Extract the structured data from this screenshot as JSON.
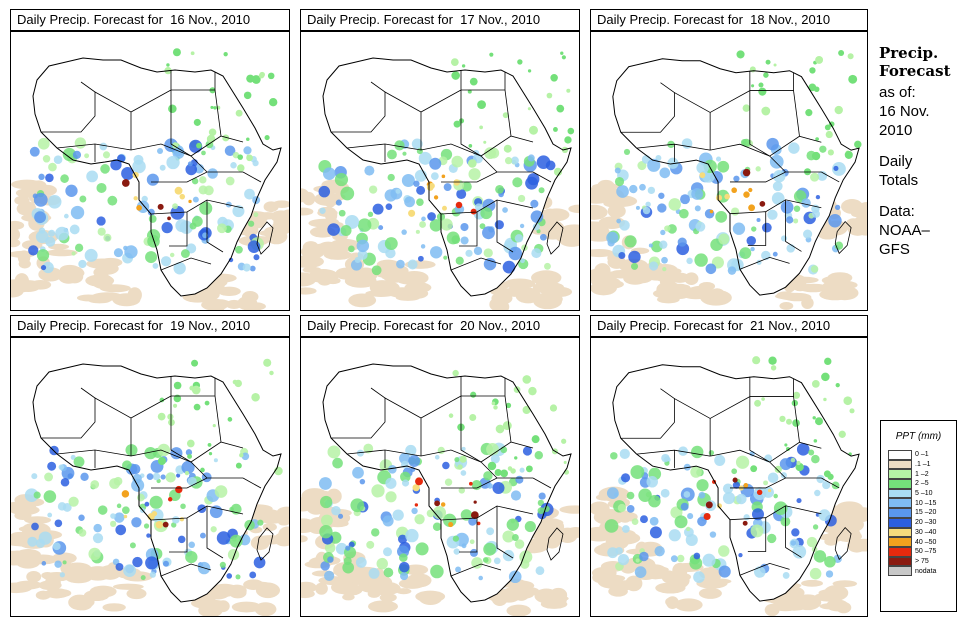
{
  "panels": [
    {
      "title": "Daily Precip. Forecast for  16 Nov., 2010"
    },
    {
      "title": "Daily Precip. Forecast for  17 Nov., 2010"
    },
    {
      "title": "Daily Precip. Forecast for  18 Nov., 2010"
    },
    {
      "title": "Daily Precip. Forecast for  19 Nov., 2010"
    },
    {
      "title": "Daily Precip. Forecast for  20 Nov., 2010"
    },
    {
      "title": "Daily Precip. Forecast for  21 Nov., 2010"
    }
  ],
  "side": {
    "heading1": "Precip.",
    "heading2": "Forecast",
    "asof": "as of:",
    "date1": "16 Nov.",
    "date2": "2010",
    "totals1": "Daily",
    "totals2": "Totals",
    "data1": "Data:",
    "data2": "NOAA–",
    "data3": "GFS"
  },
  "legend": {
    "title": "PPT (mm)",
    "items": [
      {
        "label": "0 –1",
        "color": "#ffffff"
      },
      {
        "label": ".1 –1",
        "color": "#eddcc4"
      },
      {
        "label": "1 –2",
        "color": "#b6f2a6"
      },
      {
        "label": "2 –5",
        "color": "#74e07a"
      },
      {
        "label": "5 –10",
        "color": "#a9dcf2"
      },
      {
        "label": "10 –15",
        "color": "#7fbcf2"
      },
      {
        "label": "15 –20",
        "color": "#5a97ec"
      },
      {
        "label": "20 –30",
        "color": "#2c5fe0"
      },
      {
        "label": "30 –40",
        "color": "#f7dc7c"
      },
      {
        "label": "40 –50",
        "color": "#f2a21e"
      },
      {
        "label": "50 –75",
        "color": "#e62a0e"
      },
      {
        "label": "> 75",
        "color": "#8a1a10"
      },
      {
        "label": "nodata",
        "color": "#c8c8c8"
      }
    ]
  }
}
